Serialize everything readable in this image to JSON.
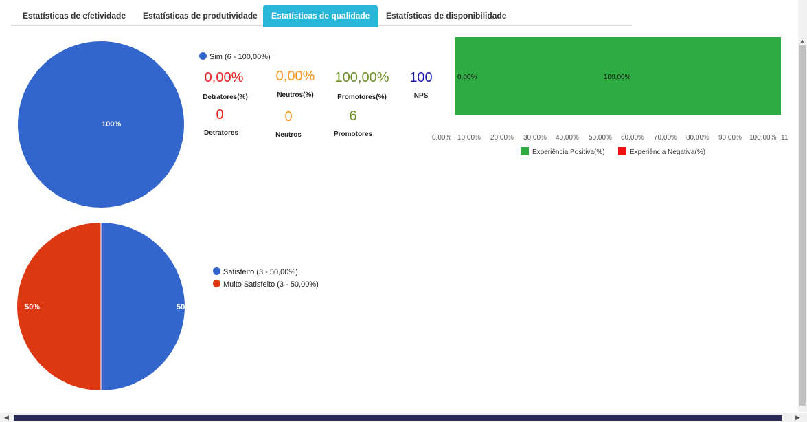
{
  "tabs": [
    {
      "label": "Estatísticas de efetividade",
      "active": false
    },
    {
      "label": "Estatísticas de produtividade",
      "active": false
    },
    {
      "label": "Estatísticas de qualidade",
      "active": true
    },
    {
      "label": "Estatísticas de disponibilidade",
      "active": false
    }
  ],
  "pie1": {
    "slice_label": "100%",
    "legend": [
      {
        "label": "Sim (6 - 100,00%)",
        "color": "#3366cc"
      }
    ]
  },
  "nps": {
    "detratores_pct": "0,00%",
    "detratores_pct_label": "Detratores(%)",
    "neutros_pct": "0,00%",
    "neutros_pct_label": "Neutros(%)",
    "promotores_pct": "100,00%",
    "promotores_pct_label": "Promotores(%)",
    "nps_value": "100",
    "nps_label": "NPS",
    "detratores_count": "0",
    "detratores_label": "Detratores",
    "neutros_count": "0",
    "neutros_label": "Neutros",
    "promotores_count": "6",
    "promotores_label": "Promotores",
    "colors": {
      "detratores": "#e8221c",
      "neutros": "#f7941d",
      "promotores": "#6b8e23",
      "nps": "#1a1aa6"
    }
  },
  "experience": {
    "negative_label": "0,00%",
    "positive_label": "100,00%",
    "ticks": [
      "0,00%",
      "10,00%",
      "20,00%",
      "30,00%",
      "40,00%",
      "50,00%",
      "60,00%",
      "70,00%",
      "80,00%",
      "90,00%",
      "100,00%",
      "11"
    ],
    "legend": [
      {
        "label": "Experiência Positiva(%)",
        "color": "#2eac43"
      },
      {
        "label": "Experiência Negativa(%)",
        "color": "#ee1111"
      }
    ]
  },
  "pie2": {
    "left_label": "50%",
    "right_label": "50",
    "legend": [
      {
        "label": "Satisfeito (3 - 50,00%)",
        "color": "#3366cc"
      },
      {
        "label": "Muito Satisfeito (3 - 50,00%)",
        "color": "#dc3912"
      }
    ]
  },
  "chart_data": [
    {
      "type": "pie",
      "categories": [
        "Sim"
      ],
      "values": [
        6
      ],
      "percentages": [
        100.0
      ]
    },
    {
      "type": "bar",
      "categories": [
        "Experiência Negativa(%)",
        "Experiência Positiva(%)"
      ],
      "values": [
        0.0,
        100.0
      ],
      "xlim": [
        0,
        110
      ]
    },
    {
      "type": "pie",
      "categories": [
        "Satisfeito",
        "Muito Satisfeito"
      ],
      "values": [
        3,
        3
      ],
      "percentages": [
        50.0,
        50.0
      ]
    }
  ]
}
